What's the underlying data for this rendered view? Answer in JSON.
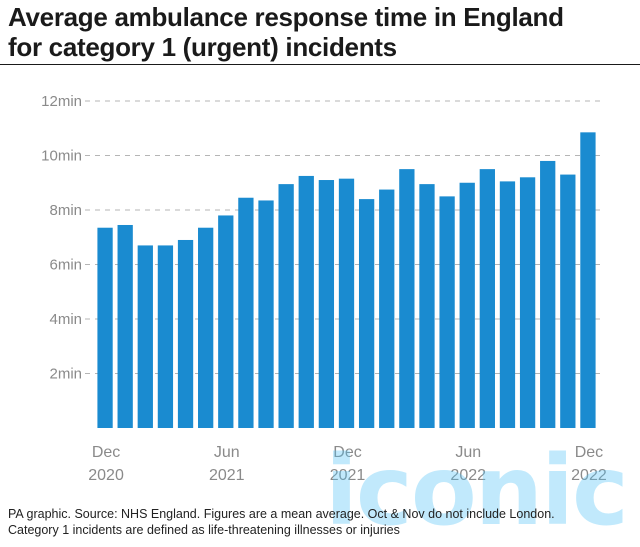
{
  "title_line1": "Average ambulance response time in England",
  "title_line2": "for category 1 (urgent) incidents",
  "footer_line1": "PA graphic. Source: NHS England. Figures are a mean average. Oct & Nov do not include London.",
  "footer_line2": "Category 1 incidents are defined as life-threatening illnesses or injuries",
  "watermark": "iconic",
  "colors": {
    "bar": "#1a8bd0",
    "grid": "#b5b5b5",
    "tick": "#8a8a8a"
  },
  "chart_data": {
    "type": "bar",
    "categories": [
      "Dec 2020",
      "Jan 2021",
      "Feb 2021",
      "Mar 2021",
      "Apr 2021",
      "May 2021",
      "Jun 2021",
      "Jul 2021",
      "Aug 2021",
      "Sep 2021",
      "Oct 2021",
      "Nov 2021",
      "Dec 2021",
      "Jan 2022",
      "Feb 2022",
      "Mar 2022",
      "Apr 2022",
      "May 2022",
      "Jun 2022",
      "Jul 2022",
      "Aug 2022",
      "Sep 2022",
      "Oct 2022",
      "Nov 2022",
      "Dec 2022"
    ],
    "values": [
      7.35,
      7.45,
      6.7,
      6.7,
      6.9,
      7.35,
      7.8,
      8.45,
      8.35,
      8.95,
      9.25,
      9.1,
      9.15,
      8.4,
      8.75,
      9.5,
      8.95,
      8.5,
      9.0,
      9.5,
      9.05,
      9.2,
      9.8,
      9.3,
      10.85
    ],
    "ylim": [
      0,
      12
    ],
    "yticks": [
      2,
      4,
      6,
      8,
      10,
      12
    ],
    "ytick_labels": [
      "2min",
      "4min",
      "6min",
      "8min",
      "10min",
      "12min"
    ],
    "xtick_labels": [
      {
        "index": 0,
        "line1": "Dec",
        "line2": "2020"
      },
      {
        "index": 6,
        "line1": "Jun",
        "line2": "2021"
      },
      {
        "index": 12,
        "line1": "Dec",
        "line2": "2021"
      },
      {
        "index": 18,
        "line1": "Jun",
        "line2": "2022"
      },
      {
        "index": 24,
        "line1": "Dec",
        "line2": "2022"
      }
    ],
    "grid": true
  }
}
